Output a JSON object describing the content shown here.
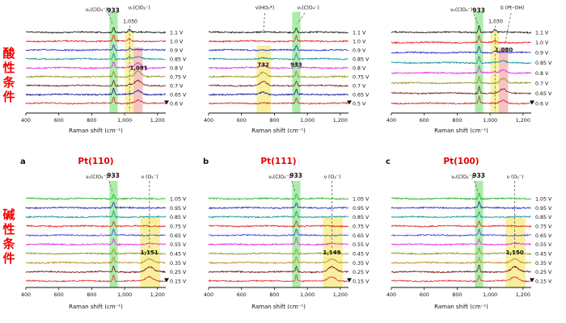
{
  "figure": {
    "row_labels": [
      {
        "text": "酸性条件",
        "color": "#f50000"
      },
      {
        "text": "碱性条件",
        "color": "#f50000"
      }
    ]
  },
  "chart_data": [
    {
      "id": "acidic-left",
      "type": "line",
      "row": 0,
      "panel_letter": "",
      "title": "",
      "title_color": "#e80000",
      "xlabel": "Raman shift (cm⁻¹)",
      "x_range": [
        400,
        1250
      ],
      "x_ticks": [
        400,
        600,
        800,
        1000,
        1200
      ],
      "x_tick_labels": [
        "400",
        "600",
        "800",
        "1,000",
        "1,200"
      ],
      "voltages": [
        "1.1 V",
        "1.0 V",
        "0.9 V",
        "0.85 V",
        "0.8 V",
        "0.75 V",
        "0.7 V",
        "0.65 V",
        "0.6 V"
      ],
      "trace_colors": [
        "#1a1a1a",
        "#e31f1f",
        "#2929cc",
        "#0f8f8f",
        "#e326e3",
        "#8f8f14",
        "#7a1f14",
        "#14148f",
        "#cc2929"
      ],
      "bands": [
        {
          "x0": 908,
          "x1": 958,
          "color": "#66dd66",
          "opacity": 0.55,
          "y0": -0.14,
          "y1": 1.0
        },
        {
          "x0": 1002,
          "x1": 1056,
          "color": "#f2e23c",
          "opacity": 0.45,
          "y0": 0.08,
          "y1": 1.0
        },
        {
          "x0": 1054,
          "x1": 1110,
          "color": "#f08a8a",
          "opacity": 0.5,
          "y0": 0.26,
          "y1": 1.0
        }
      ],
      "peaks": [
        {
          "x": 933,
          "sigma": 5,
          "amps": [
            7,
            8,
            7,
            7,
            8,
            7,
            7,
            7,
            8
          ]
        },
        {
          "x": 1030,
          "sigma": 8,
          "amps": [
            3,
            3,
            2,
            2,
            1,
            1,
            1,
            0.5,
            0.5
          ]
        },
        {
          "x": 1081,
          "sigma": 20,
          "amps": [
            0,
            0,
            1,
            2,
            6,
            7,
            6,
            5,
            4
          ]
        }
      ],
      "labels": [
        {
          "text": "νₛ(ClO₄⁻)",
          "x": 896,
          "y": 0.075,
          "anchor": "end",
          "size": 6.2,
          "bold": false
        },
        {
          "text": "933",
          "x": 931,
          "y": 0.082,
          "anchor": "middle",
          "size": 7.5,
          "bold": true
        },
        {
          "text": "νₛ(ClO₃⁻)",
          "x": 1022,
          "y": 0.062,
          "anchor": "start",
          "size": 6.2,
          "bold": false
        },
        {
          "text": "1,030",
          "x": 1034,
          "y": 0.152,
          "anchor": "middle",
          "size": 6.2,
          "bold": false
        },
        {
          "text": "1,081",
          "x": 1086,
          "y": 0.46,
          "anchor": "middle",
          "size": 7,
          "bold": true
        }
      ],
      "lines": [
        {
          "x1": 903,
          "y1": 0.09,
          "x2": 926,
          "y2": 0.158,
          "dash": true
        },
        {
          "x1": 1030,
          "y1": 0.168,
          "x2": 1030,
          "y2": 0.73,
          "dash": true
        }
      ]
    },
    {
      "id": "acidic-middle",
      "type": "line",
      "row": 0,
      "panel_letter": "",
      "title": "",
      "title_color": "#e80000",
      "xlabel": "Raman shift (cm⁻¹)",
      "x_range": [
        400,
        1250
      ],
      "x_ticks": [
        400,
        600,
        800,
        1000,
        1200
      ],
      "x_tick_labels": [
        "400",
        "600",
        "800",
        "1,000",
        "1,200"
      ],
      "voltages": [
        "1.1 V",
        "1.0 V",
        "0.9 V",
        "0.85 V",
        "0.8 V",
        "0.75 V",
        "0.7 V",
        "0.65 V",
        "0.5 V"
      ],
      "trace_colors": [
        "#1a1a1a",
        "#e31f1f",
        "#2929cc",
        "#0f8f8f",
        "#e326e3",
        "#8f8f14",
        "#7a1f14",
        "#14148f",
        "#cc2929"
      ],
      "bands": [
        {
          "x0": 692,
          "x1": 778,
          "color": "#f2e23c",
          "opacity": 0.5,
          "y0": 0.24,
          "y1": 1.0
        },
        {
          "x0": 908,
          "x1": 958,
          "color": "#66dd66",
          "opacity": 0.55,
          "y0": -0.14,
          "y1": 1.0
        }
      ],
      "peaks": [
        {
          "x": 933,
          "sigma": 5,
          "amps": [
            6,
            7,
            6,
            7,
            7,
            7,
            6,
            7,
            7
          ]
        },
        {
          "x": 732,
          "sigma": 18,
          "amps": [
            0,
            0,
            0,
            1,
            3,
            6,
            5,
            3,
            1
          ]
        }
      ],
      "labels": [
        {
          "text": "ν(HO₂*)",
          "x": 742,
          "y": 0.06,
          "anchor": "middle",
          "size": 6.2,
          "bold": false
        },
        {
          "text": "νₛ(ClO₄⁻)",
          "x": 1005,
          "y": 0.06,
          "anchor": "middle",
          "size": 6.2,
          "bold": false
        },
        {
          "text": "732",
          "x": 732,
          "y": 0.44,
          "anchor": "middle",
          "size": 7,
          "bold": true
        },
        {
          "text": "933",
          "x": 933,
          "y": 0.44,
          "anchor": "middle",
          "size": 7,
          "bold": true
        }
      ],
      "lines": [
        {
          "x1": 742,
          "y1": 0.085,
          "x2": 733,
          "y2": 0.21,
          "dash": true
        },
        {
          "x1": 985,
          "y1": 0.085,
          "x2": 941,
          "y2": 0.155,
          "dash": true
        }
      ]
    },
    {
      "id": "acidic-right",
      "type": "line",
      "row": 0,
      "panel_letter": "",
      "title": "",
      "title_color": "#e80000",
      "xlabel": "Raman shift (cm⁻¹)",
      "x_range": [
        400,
        1250
      ],
      "x_ticks": [
        400,
        600,
        800,
        1000,
        1200
      ],
      "x_tick_labels": [
        "400",
        "600",
        "800",
        "1,000",
        "1,200"
      ],
      "voltages": [
        "1.1 V",
        "1.0 V",
        "0.9 V",
        "0.85 V",
        "0.8 V",
        "0.7 V",
        "0.65 V",
        "0.6 V"
      ],
      "trace_colors": [
        "#1a1a1a",
        "#e31f1f",
        "#2929cc",
        "#0f8f8f",
        "#e326e3",
        "#8f8f14",
        "#7a1f14",
        "#cc2929"
      ],
      "bands": [
        {
          "x0": 908,
          "x1": 958,
          "color": "#66dd66",
          "opacity": 0.55,
          "y0": -0.14,
          "y1": 1.0
        },
        {
          "x0": 1002,
          "x1": 1056,
          "color": "#f2e23c",
          "opacity": 0.45,
          "y0": 0.08,
          "y1": 1.0
        },
        {
          "x0": 1054,
          "x1": 1110,
          "color": "#f08a8a",
          "opacity": 0.5,
          "y0": 0.26,
          "y1": 1.0
        }
      ],
      "peaks": [
        {
          "x": 933,
          "sigma": 5,
          "amps": [
            8,
            8,
            8,
            8,
            8,
            8,
            8,
            8
          ]
        },
        {
          "x": 1030,
          "sigma": 8,
          "amps": [
            3,
            2,
            2,
            1,
            1,
            0.5,
            0,
            0
          ]
        },
        {
          "x": 1080,
          "sigma": 18,
          "amps": [
            0,
            0,
            1,
            2,
            4,
            6,
            5,
            4
          ]
        }
      ],
      "labels": [
        {
          "text": "νₛ(ClO₄⁻)",
          "x": 893,
          "y": 0.075,
          "anchor": "end",
          "size": 6.2,
          "bold": false
        },
        {
          "text": "933",
          "x": 931,
          "y": 0.082,
          "anchor": "middle",
          "size": 7.5,
          "bold": true
        },
        {
          "text": "δ (Pt–OH)",
          "x": 1135,
          "y": 0.062,
          "anchor": "middle",
          "size": 6.2,
          "bold": false
        },
        {
          "text": "1,030",
          "x": 1034,
          "y": 0.152,
          "anchor": "middle",
          "size": 6.2,
          "bold": false
        },
        {
          "text": "1,080",
          "x": 1084,
          "y": 0.34,
          "anchor": "middle",
          "size": 7,
          "bold": true
        }
      ],
      "lines": [
        {
          "x1": 900,
          "y1": 0.09,
          "x2": 925,
          "y2": 0.158,
          "dash": true
        },
        {
          "x1": 1030,
          "y1": 0.168,
          "x2": 1030,
          "y2": 0.73,
          "dash": true
        },
        {
          "x1": 1128,
          "y1": 0.085,
          "x2": 1092,
          "y2": 0.28,
          "dash": true
        }
      ]
    },
    {
      "id": "alkaline-pt110",
      "type": "line",
      "row": 1,
      "panel_letter": "a",
      "title": "Pt(110)",
      "title_color": "#e80000",
      "xlabel": "Raman shift (cm⁻¹)",
      "x_range": [
        400,
        1250
      ],
      "x_ticks": [
        400,
        600,
        800,
        1000,
        1200
      ],
      "x_tick_labels": [
        "400",
        "600",
        "800",
        "1,000",
        "1,200"
      ],
      "voltages": [
        "1.05 V",
        "0.95 V",
        "0.85 V",
        "0.75 V",
        "0.65 V",
        "0.55 V",
        "0.45 V",
        "0.35 V",
        "0.25 V",
        "0.15 V"
      ],
      "trace_colors": [
        "#1faf1f",
        "#2222bb",
        "#0f8f8f",
        "#dd2222",
        "#4444ee",
        "#e326e3",
        "#8f8f14",
        "#bb8814",
        "#7a1414",
        "#e33333"
      ],
      "bands": [
        {
          "x0": 908,
          "x1": 958,
          "color": "#66dd66",
          "opacity": 0.55,
          "y0": -0.1,
          "y1": 1.0
        },
        {
          "x0": 1095,
          "x1": 1215,
          "color": "#f2e23c",
          "opacity": 0.5,
          "y0": 0.28,
          "y1": 1.0
        }
      ],
      "peaks": [
        {
          "x": 933,
          "sigma": 5,
          "amps": [
            6,
            7,
            7,
            6,
            8,
            7,
            6,
            7,
            7,
            7
          ]
        },
        {
          "x": 1151,
          "sigma": 22,
          "amps": [
            0,
            0,
            0,
            0,
            0,
            1,
            2,
            5,
            6,
            5
          ]
        }
      ],
      "labels": [
        {
          "text": "νₛ(ClO₄⁻)",
          "x": 898,
          "y": 0.155,
          "anchor": "end",
          "size": 6.2,
          "bold": false
        },
        {
          "text": "933",
          "x": 931,
          "y": 0.152,
          "anchor": "middle",
          "size": 7.5,
          "bold": true
        },
        {
          "text": "ν (O₂⁻)",
          "x": 1152,
          "y": 0.155,
          "anchor": "middle",
          "size": 6.2,
          "bold": false
        },
        {
          "text": "1,151",
          "x": 1150,
          "y": 0.6,
          "anchor": "middle",
          "size": 7,
          "bold": true
        }
      ],
      "lines": [
        {
          "x1": 905,
          "y1": 0.17,
          "x2": 927,
          "y2": 0.235,
          "dash": true
        },
        {
          "x1": 1151,
          "y1": 0.17,
          "x2": 1151,
          "y2": 0.56,
          "dash": true
        }
      ]
    },
    {
      "id": "alkaline-pt111",
      "type": "line",
      "row": 1,
      "panel_letter": "b",
      "title": "Pt(111)",
      "title_color": "#e80000",
      "xlabel": "Raman shift (cm⁻¹)",
      "x_range": [
        400,
        1250
      ],
      "x_ticks": [
        400,
        600,
        800,
        1000,
        1200
      ],
      "x_tick_labels": [
        "400",
        "600",
        "800",
        "1,000",
        "1,200"
      ],
      "voltages": [
        "1.05 V",
        "0.95 V",
        "0.85 V",
        "0.75 V",
        "0.65 V",
        "0.55 V",
        "0.45 V",
        "0.35 V",
        "0.25 V",
        "0.15 V"
      ],
      "trace_colors": [
        "#1faf1f",
        "#2222bb",
        "#0f8f8f",
        "#dd2222",
        "#4444ee",
        "#e326e3",
        "#8f8f14",
        "#bb8814",
        "#7a1414",
        "#e33333"
      ],
      "bands": [
        {
          "x0": 908,
          "x1": 958,
          "color": "#66dd66",
          "opacity": 0.55,
          "y0": -0.1,
          "y1": 1.0
        },
        {
          "x0": 1095,
          "x1": 1215,
          "color": "#f2e23c",
          "opacity": 0.5,
          "y0": 0.28,
          "y1": 1.0
        }
      ],
      "peaks": [
        {
          "x": 933,
          "sigma": 5,
          "amps": [
            7,
            6,
            7,
            7,
            7,
            8,
            6,
            7,
            7,
            8
          ]
        },
        {
          "x": 1149,
          "sigma": 22,
          "amps": [
            0,
            0,
            0,
            0,
            0,
            1,
            2,
            5,
            6,
            5
          ]
        }
      ],
      "labels": [
        {
          "text": "νₛ(ClO₄⁻)",
          "x": 898,
          "y": 0.155,
          "anchor": "end",
          "size": 6.2,
          "bold": false
        },
        {
          "text": "933",
          "x": 931,
          "y": 0.152,
          "anchor": "middle",
          "size": 7.5,
          "bold": true
        },
        {
          "text": "ν (O₂⁻)",
          "x": 1152,
          "y": 0.155,
          "anchor": "middle",
          "size": 6.2,
          "bold": false
        },
        {
          "text": "1,149",
          "x": 1149,
          "y": 0.6,
          "anchor": "middle",
          "size": 7,
          "bold": true
        }
      ],
      "lines": [
        {
          "x1": 905,
          "y1": 0.17,
          "x2": 927,
          "y2": 0.235,
          "dash": true
        },
        {
          "x1": 1149,
          "y1": 0.17,
          "x2": 1149,
          "y2": 0.56,
          "dash": true
        }
      ]
    },
    {
      "id": "alkaline-pt100",
      "type": "line",
      "row": 1,
      "panel_letter": "c",
      "title": "Pt(100)",
      "title_color": "#e80000",
      "xlabel": "Raman shift (cm⁻¹)",
      "x_range": [
        400,
        1250
      ],
      "x_ticks": [
        400,
        600,
        800,
        1000,
        1200
      ],
      "x_tick_labels": [
        "400",
        "600",
        "800",
        "1,000",
        "1,200"
      ],
      "voltages": [
        "1.05 V",
        "0.95 V",
        "0.85 V",
        "0.75 V",
        "0.65 V",
        "0.55 V",
        "0.45 V",
        "0.35 V",
        "0.25 V",
        "0.15 V"
      ],
      "trace_colors": [
        "#1faf1f",
        "#2222bb",
        "#0f8f8f",
        "#dd2222",
        "#4444ee",
        "#e326e3",
        "#8f8f14",
        "#bb8814",
        "#7a1414",
        "#e33333"
      ],
      "bands": [
        {
          "x0": 908,
          "x1": 958,
          "color": "#66dd66",
          "opacity": 0.55,
          "y0": -0.1,
          "y1": 1.0
        },
        {
          "x0": 1095,
          "x1": 1215,
          "color": "#f2e23c",
          "opacity": 0.5,
          "y0": 0.28,
          "y1": 1.0
        }
      ],
      "peaks": [
        {
          "x": 933,
          "sigma": 5,
          "amps": [
            7,
            7,
            6,
            7,
            7,
            7,
            7,
            6,
            8,
            7
          ]
        },
        {
          "x": 1150,
          "sigma": 22,
          "amps": [
            0,
            0,
            0,
            0,
            0,
            1,
            2,
            5,
            6,
            5
          ]
        }
      ],
      "labels": [
        {
          "text": "νₛ(ClO₄⁻)",
          "x": 898,
          "y": 0.155,
          "anchor": "end",
          "size": 6.2,
          "bold": false
        },
        {
          "text": "933",
          "x": 931,
          "y": 0.152,
          "anchor": "middle",
          "size": 7.5,
          "bold": true
        },
        {
          "text": "ν (O₂⁻)",
          "x": 1152,
          "y": 0.155,
          "anchor": "middle",
          "size": 6.2,
          "bold": false
        },
        {
          "text": "1,150",
          "x": 1150,
          "y": 0.6,
          "anchor": "middle",
          "size": 7,
          "bold": true
        }
      ],
      "lines": [
        {
          "x1": 905,
          "y1": 0.17,
          "x2": 927,
          "y2": 0.235,
          "dash": true
        },
        {
          "x1": 1150,
          "y1": 0.17,
          "x2": 1150,
          "y2": 0.56,
          "dash": true
        }
      ]
    }
  ]
}
